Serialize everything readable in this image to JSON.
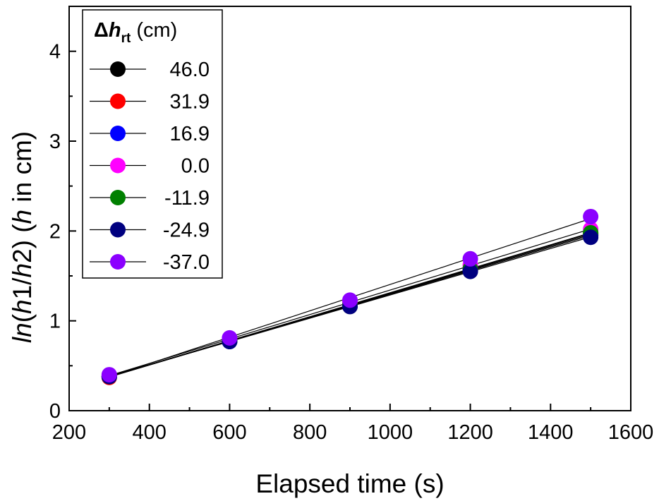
{
  "chart_data": {
    "type": "scatter",
    "title": "",
    "xlabel": "Elapsed time (s)",
    "ylabel_parts": {
      "ln": "ln",
      "open": "(",
      "h1": "h",
      "one": "1/",
      "h2": "h",
      "two": "2) (",
      "h3": "h",
      "rest": " in cm)"
    },
    "xlim": [
      200,
      1600
    ],
    "ylim": [
      0,
      4.5
    ],
    "xticks": [
      200,
      400,
      600,
      800,
      1000,
      1200,
      1400,
      1600
    ],
    "yticks": [
      0,
      1,
      2,
      3,
      4
    ],
    "x": [
      300,
      600,
      900,
      1200,
      1500
    ],
    "legend_title": {
      "delta": "Δ",
      "h": "h",
      "sub": "rt",
      "unit": " (cm)"
    },
    "legend_location": "top-left",
    "series": [
      {
        "name": "46.0",
        "color": "#000000",
        "values": [
          0.38,
          0.77,
          1.16,
          1.56,
          1.95
        ]
      },
      {
        "name": "31.9",
        "color": "#ff0000",
        "values": [
          0.37,
          0.78,
          1.17,
          1.58,
          1.97
        ]
      },
      {
        "name": "16.9",
        "color": "#0000ff",
        "values": [
          0.38,
          0.77,
          1.17,
          1.57,
          1.96
        ]
      },
      {
        "name": "0.0",
        "color": "#ff00ff",
        "values": [
          0.39,
          0.8,
          1.2,
          1.62,
          2.02
        ]
      },
      {
        "name": "-11.9",
        "color": "#008000",
        "values": [
          0.38,
          0.78,
          1.18,
          1.58,
          1.98
        ]
      },
      {
        "name": "-24.9",
        "color": "#000080",
        "values": [
          0.38,
          0.77,
          1.16,
          1.55,
          1.93
        ]
      },
      {
        "name": "-37.0",
        "color": "#8b00ff",
        "values": [
          0.4,
          0.81,
          1.23,
          1.69,
          2.16
        ]
      }
    ]
  }
}
